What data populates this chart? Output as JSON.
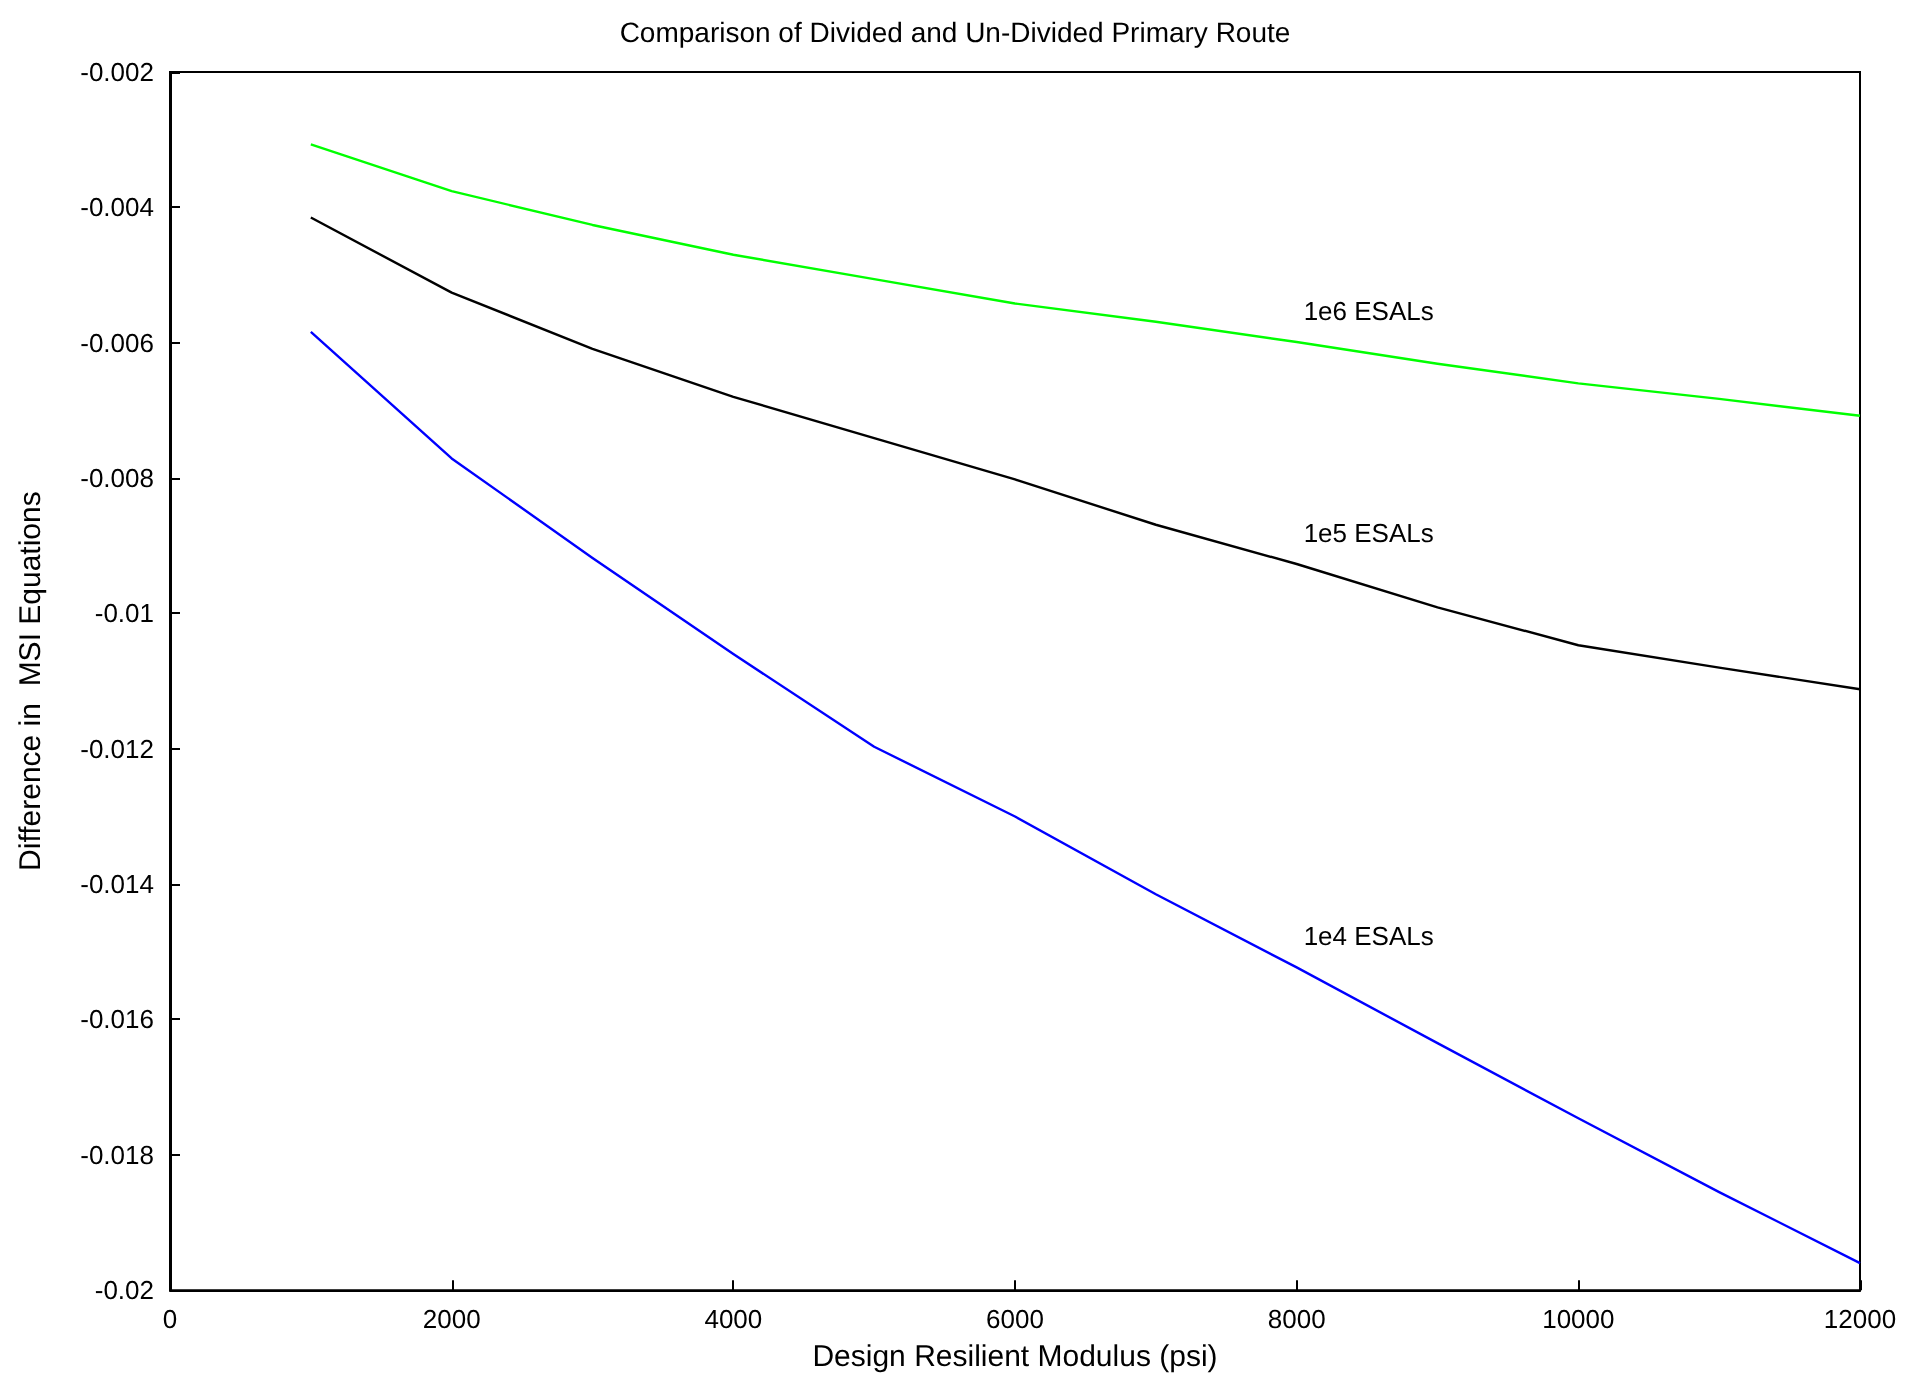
{
  "chart_data": {
    "type": "line",
    "title": "Comparison of Divided and Un-Divided Primary Route",
    "xlabel": "Design Resilient Modulus (psi)",
    "ylabel": "Difference in  MSI Equations",
    "x": [
      1000,
      2000,
      3000,
      4000,
      5000,
      6000,
      7000,
      8000,
      9000,
      10000,
      11000,
      12000
    ],
    "series": [
      {
        "name": "1e6 ESALs",
        "color": "#00ff00",
        "values": [
          -0.00307,
          -0.00376,
          -0.00426,
          -0.0047,
          -0.00506,
          -0.00542,
          -0.00569,
          -0.00599,
          -0.00631,
          -0.0066,
          -0.00683,
          -0.00708
        ]
      },
      {
        "name": "1e5 ESALs",
        "color": "#000000",
        "values": [
          -0.00415,
          -0.00526,
          -0.00609,
          -0.0068,
          -0.00741,
          -0.00802,
          -0.00869,
          -0.00927,
          -0.00991,
          -0.01047,
          -0.0108,
          -0.01112
        ]
      },
      {
        "name": "1e4 ESALs",
        "color": "#0000ff",
        "values": [
          -0.00584,
          -0.00771,
          -0.00918,
          -0.0106,
          -0.01197,
          -0.013,
          -0.01415,
          -0.01523,
          -0.01635,
          -0.01746,
          -0.01855,
          -0.0196
        ]
      }
    ],
    "xlim": [
      0,
      12000
    ],
    "xticks": [
      0,
      2000,
      4000,
      6000,
      8000,
      10000,
      12000
    ],
    "ylim": [
      -0.02,
      -0.002
    ],
    "yticks": [
      -0.02,
      -0.018,
      -0.016,
      -0.014,
      -0.012,
      -0.01,
      -0.008,
      -0.006,
      -0.004,
      -0.002
    ],
    "grid": false
  }
}
